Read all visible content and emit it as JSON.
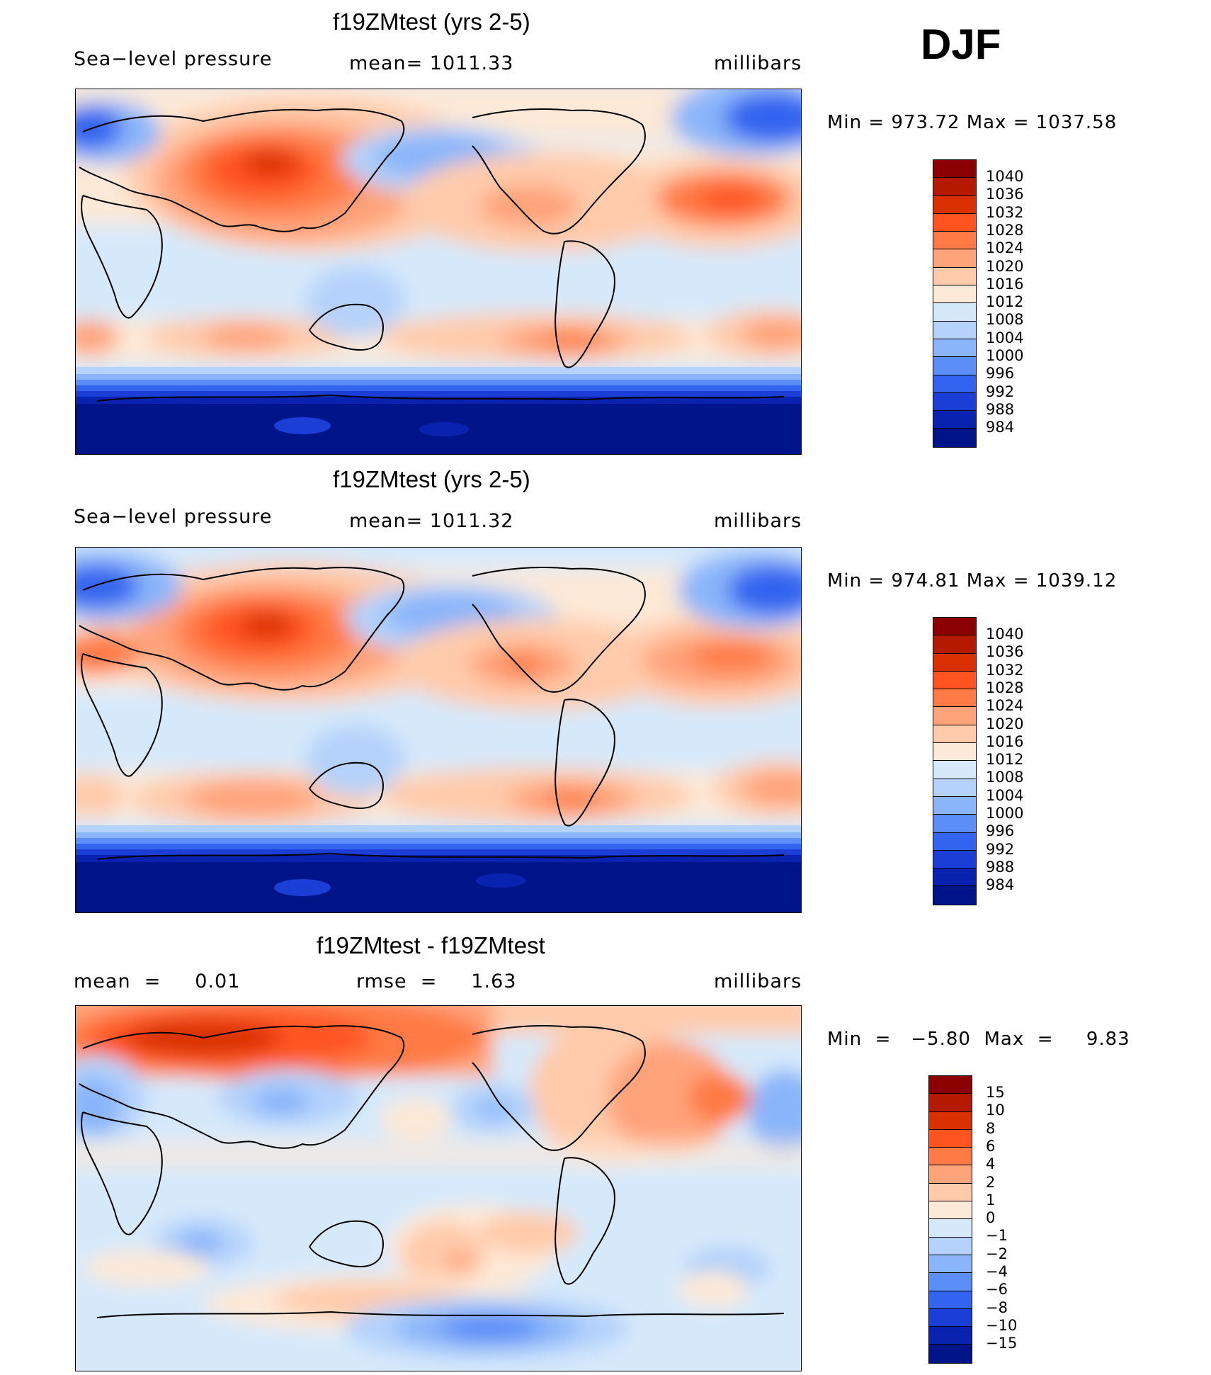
{
  "season": "DJF",
  "panels": [
    {
      "title": "f19ZMtest (yrs 2-5)",
      "variable": "Sea−level pressure",
      "stat": "mean=  1011.33",
      "units": "millibars",
      "minmax": "Min  =  973.72  Max  =  1037.58",
      "colorbar_labels": [
        "1040",
        "1036",
        "1032",
        "1028",
        "1024",
        "1020",
        "1016",
        "1012",
        "1008",
        "1004",
        "1000",
        "996",
        "992",
        "988",
        "984"
      ]
    },
    {
      "title": "f19ZMtest (yrs 2-5)",
      "variable": "Sea−level pressure",
      "stat": "mean=  1011.32",
      "units": "millibars",
      "minmax": "Min  =  974.81  Max  =  1039.12",
      "colorbar_labels": [
        "1040",
        "1036",
        "1032",
        "1028",
        "1024",
        "1020",
        "1016",
        "1012",
        "1008",
        "1004",
        "1000",
        "996",
        "992",
        "988",
        "984"
      ]
    },
    {
      "title": "f19ZMtest - f19ZMtest",
      "stat_left": "mean  =     0.01",
      "stat_mid": "rmse  =     1.63",
      "units": "millibars",
      "minmax": "Min  =   −5.80  Max  =     9.83",
      "colorbar_labels": [
        "15",
        "10",
        "8",
        "6",
        "4",
        "2",
        "1",
        "0",
        "−1",
        "−2",
        "−4",
        "−6",
        "−8",
        "−10",
        "−15"
      ]
    }
  ],
  "colors": {
    "abs_scale": [
      "#8b0000",
      "#b31a00",
      "#d93000",
      "#ff5420",
      "#ff7a45",
      "#ffa37a",
      "#ffcbab",
      "#fde9d7",
      "#d6e9fb",
      "#b4d2fb",
      "#8ab5fa",
      "#5b8ef7",
      "#3264f0",
      "#1a3ed6",
      "#0a22b0",
      "#00148a"
    ],
    "diff_scale": [
      "#8b0000",
      "#b31a00",
      "#d93000",
      "#ff5420",
      "#ff7a45",
      "#ffa37a",
      "#ffcbab",
      "#fde9d7",
      "#d6e9fb",
      "#b4d2fb",
      "#8ab5fa",
      "#5b8ef7",
      "#3264f0",
      "#1a3ed6",
      "#0a22b0",
      "#00148a"
    ]
  }
}
